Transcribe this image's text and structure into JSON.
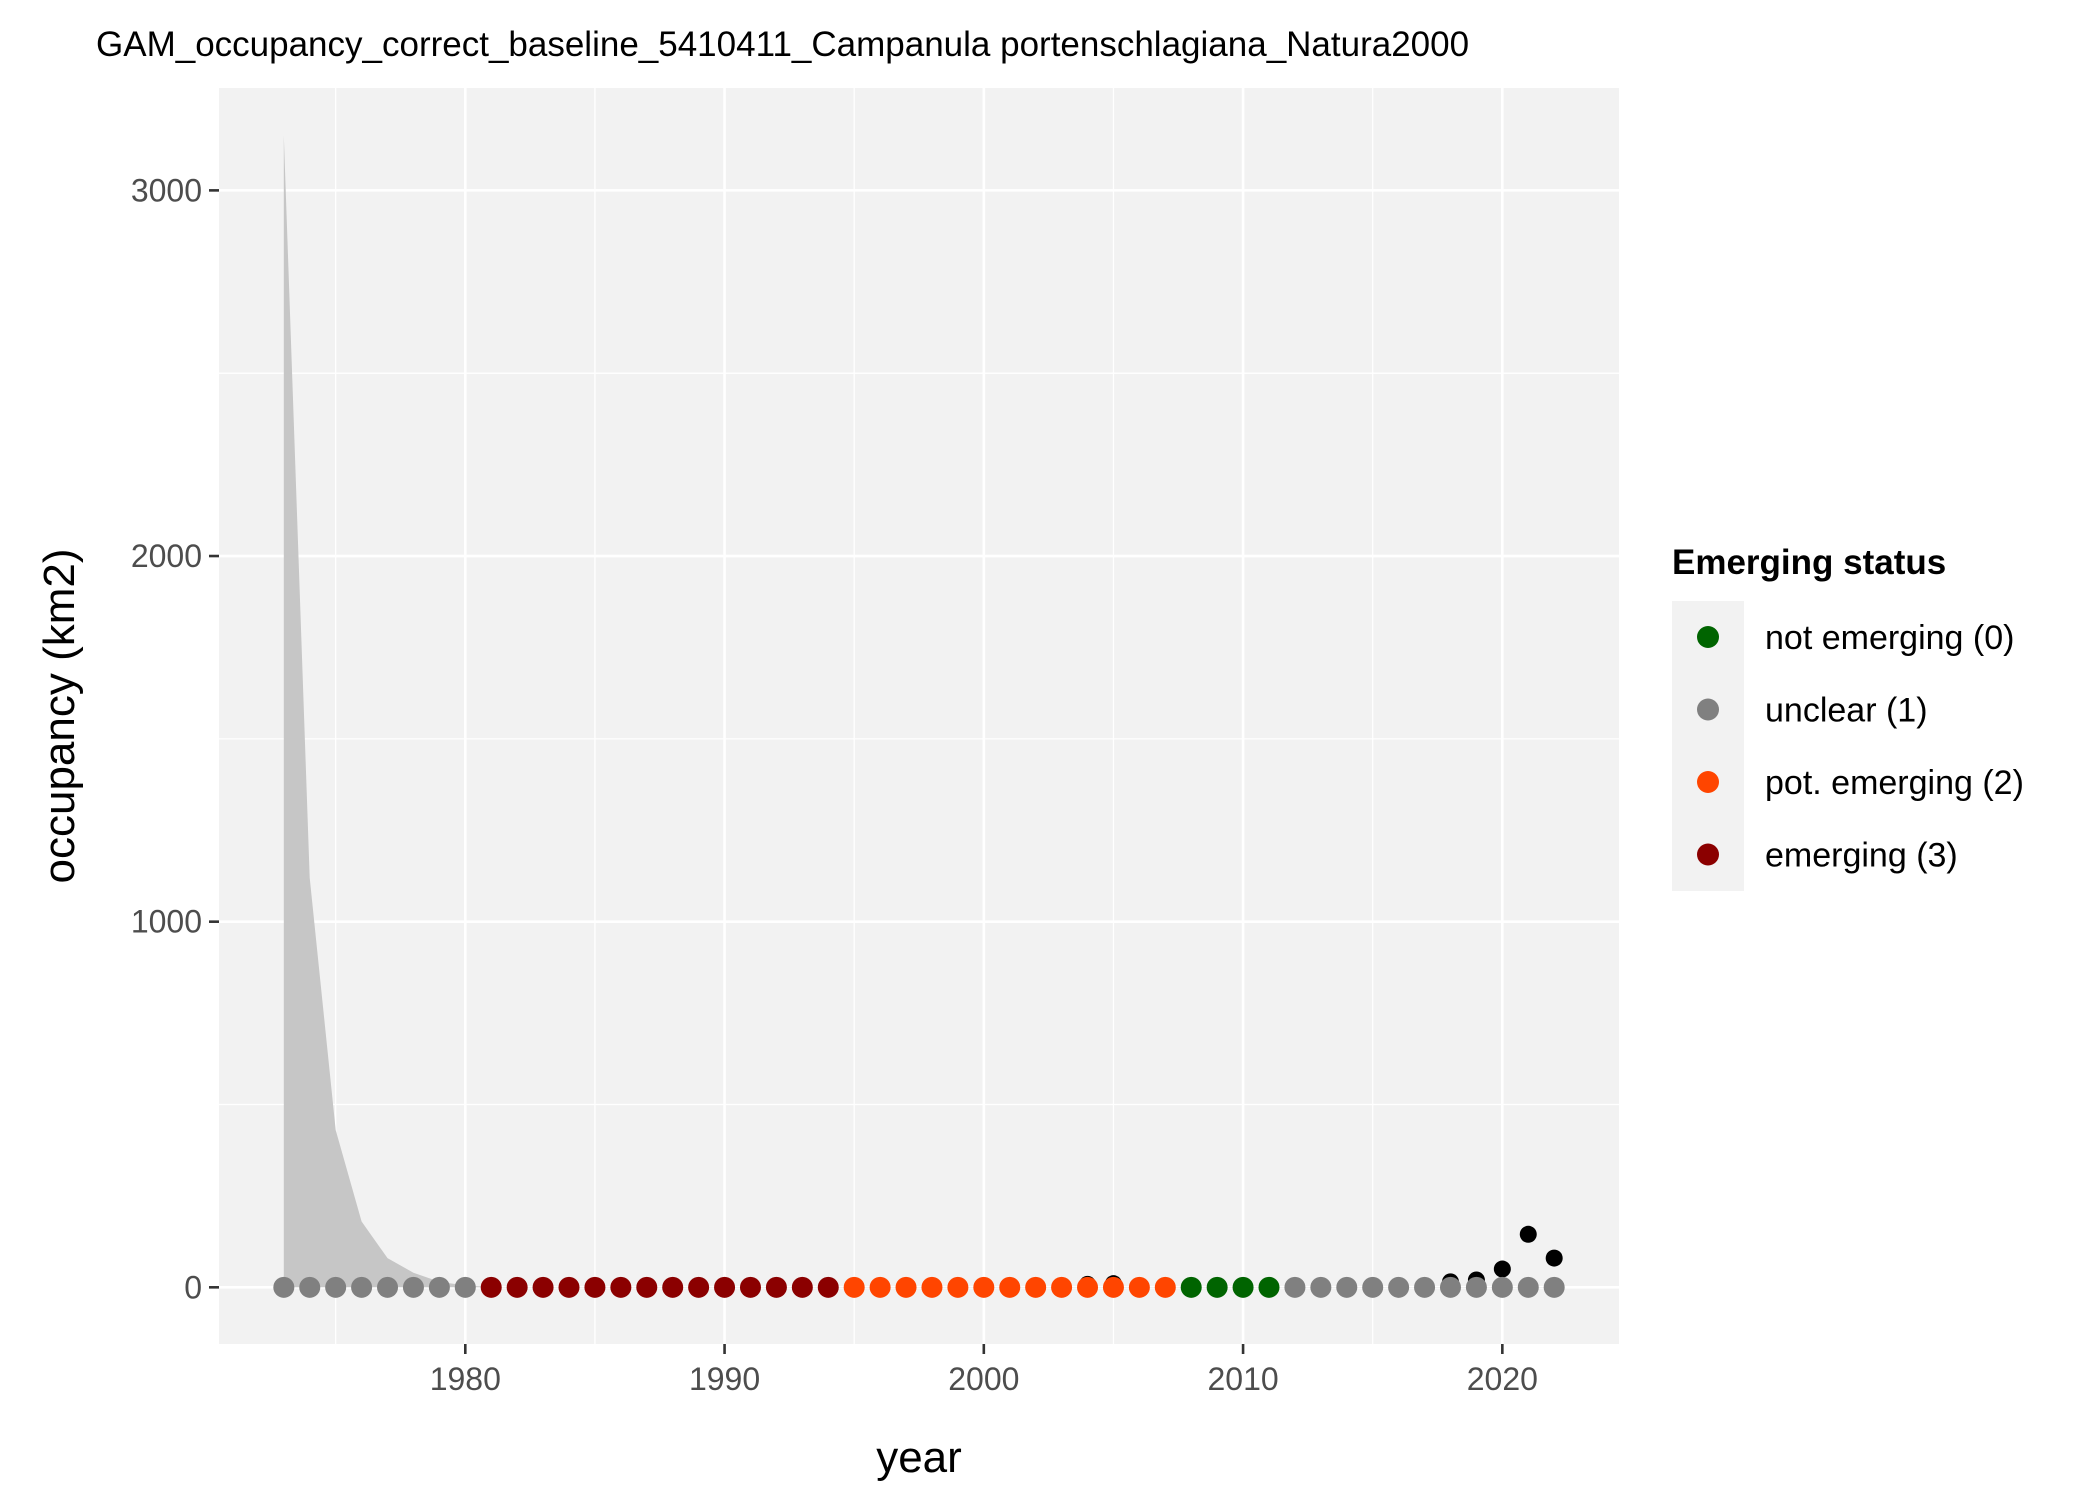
{
  "chart_data": {
    "type": "scatter",
    "title": "GAM_occupancy_correct_baseline_5410411_Campanula portenschlagiana_Natura2000",
    "xlabel": "year",
    "ylabel": "occupancy (km2)",
    "xlim": [
      1970.5,
      2024.5
    ],
    "ylim": [
      -155,
      3280
    ],
    "x_ticks": [
      1980,
      1990,
      2000,
      2010,
      2020
    ],
    "x_tick_labels": [
      "1980",
      "1990",
      "2000",
      "2010",
      "2020"
    ],
    "y_ticks": [
      0,
      1000,
      2000,
      3000
    ],
    "y_tick_labels": [
      "0",
      "1000",
      "2000",
      "3000"
    ],
    "grid": true,
    "legend": {
      "title": "Emerging status",
      "position": "right",
      "entries": [
        {
          "label": "not emerging (0)",
          "color": "#006400"
        },
        {
          "label": "unclear (1)",
          "color": "#808080"
        },
        {
          "label": "pot. emerging (2)",
          "color": "#FF4500"
        },
        {
          "label": "emerging (3)",
          "color": "#8B0000"
        }
      ]
    },
    "confidence_band": {
      "color": "#c6c6c6",
      "x": [
        1973,
        1974,
        1975,
        1976,
        1977,
        1978,
        1979,
        1980,
        1981,
        2022
      ],
      "upper": [
        3150,
        1120,
        430,
        180,
        80,
        40,
        15,
        5,
        1,
        1
      ],
      "lower": [
        0,
        0,
        0,
        0,
        0,
        0,
        0,
        0,
        0,
        0
      ]
    },
    "observed": {
      "color": "#000000",
      "x": [
        1973,
        1974,
        1975,
        1976,
        1977,
        1978,
        1979,
        1980,
        1981,
        1982,
        1983,
        1984,
        1985,
        1986,
        1987,
        1988,
        1989,
        1990,
        1991,
        1992,
        1993,
        1994,
        1995,
        1996,
        1997,
        1998,
        1999,
        2000,
        2001,
        2002,
        2003,
        2004,
        2005,
        2006,
        2007,
        2008,
        2009,
        2010,
        2011,
        2012,
        2013,
        2014,
        2015,
        2016,
        2017,
        2018,
        2019,
        2020,
        2021,
        2022
      ],
      "y": [
        0,
        0,
        0,
        0,
        0,
        0,
        0,
        0,
        0,
        0,
        0,
        0,
        0,
        0,
        0,
        0,
        0,
        0,
        0,
        0,
        0,
        0,
        0,
        0,
        0,
        0,
        0,
        0,
        0,
        0,
        0,
        8,
        10,
        0,
        0,
        0,
        0,
        0,
        0,
        0,
        0,
        0,
        0,
        0,
        0,
        15,
        20,
        50,
        145,
        80
      ]
    },
    "fitted": {
      "x": [
        1973,
        1974,
        1975,
        1976,
        1977,
        1978,
        1979,
        1980,
        1981,
        1982,
        1983,
        1984,
        1985,
        1986,
        1987,
        1988,
        1989,
        1990,
        1991,
        1992,
        1993,
        1994,
        1995,
        1996,
        1997,
        1998,
        1999,
        2000,
        2001,
        2002,
        2003,
        2004,
        2005,
        2006,
        2007,
        2008,
        2009,
        2010,
        2011,
        2012,
        2013,
        2014,
        2015,
        2016,
        2017,
        2018,
        2019,
        2020,
        2021,
        2022
      ],
      "y": [
        0,
        0,
        0,
        0,
        0,
        0,
        0,
        0,
        0,
        0,
        0,
        0,
        0,
        0,
        0,
        0,
        0,
        0,
        0,
        0,
        0,
        0,
        0,
        0,
        0,
        0,
        0,
        0,
        0,
        0,
        0,
        0,
        0,
        0,
        0,
        0,
        0,
        0,
        0,
        0,
        0,
        0,
        0,
        0,
        0,
        0,
        0,
        0,
        0,
        0
      ],
      "status": [
        1,
        1,
        1,
        1,
        1,
        1,
        1,
        1,
        3,
        3,
        3,
        3,
        3,
        3,
        3,
        3,
        3,
        3,
        3,
        3,
        3,
        3,
        2,
        2,
        2,
        2,
        2,
        2,
        2,
        2,
        2,
        2,
        2,
        2,
        2,
        0,
        0,
        0,
        0,
        1,
        1,
        1,
        1,
        1,
        1,
        1,
        1,
        1,
        1,
        1
      ]
    }
  }
}
